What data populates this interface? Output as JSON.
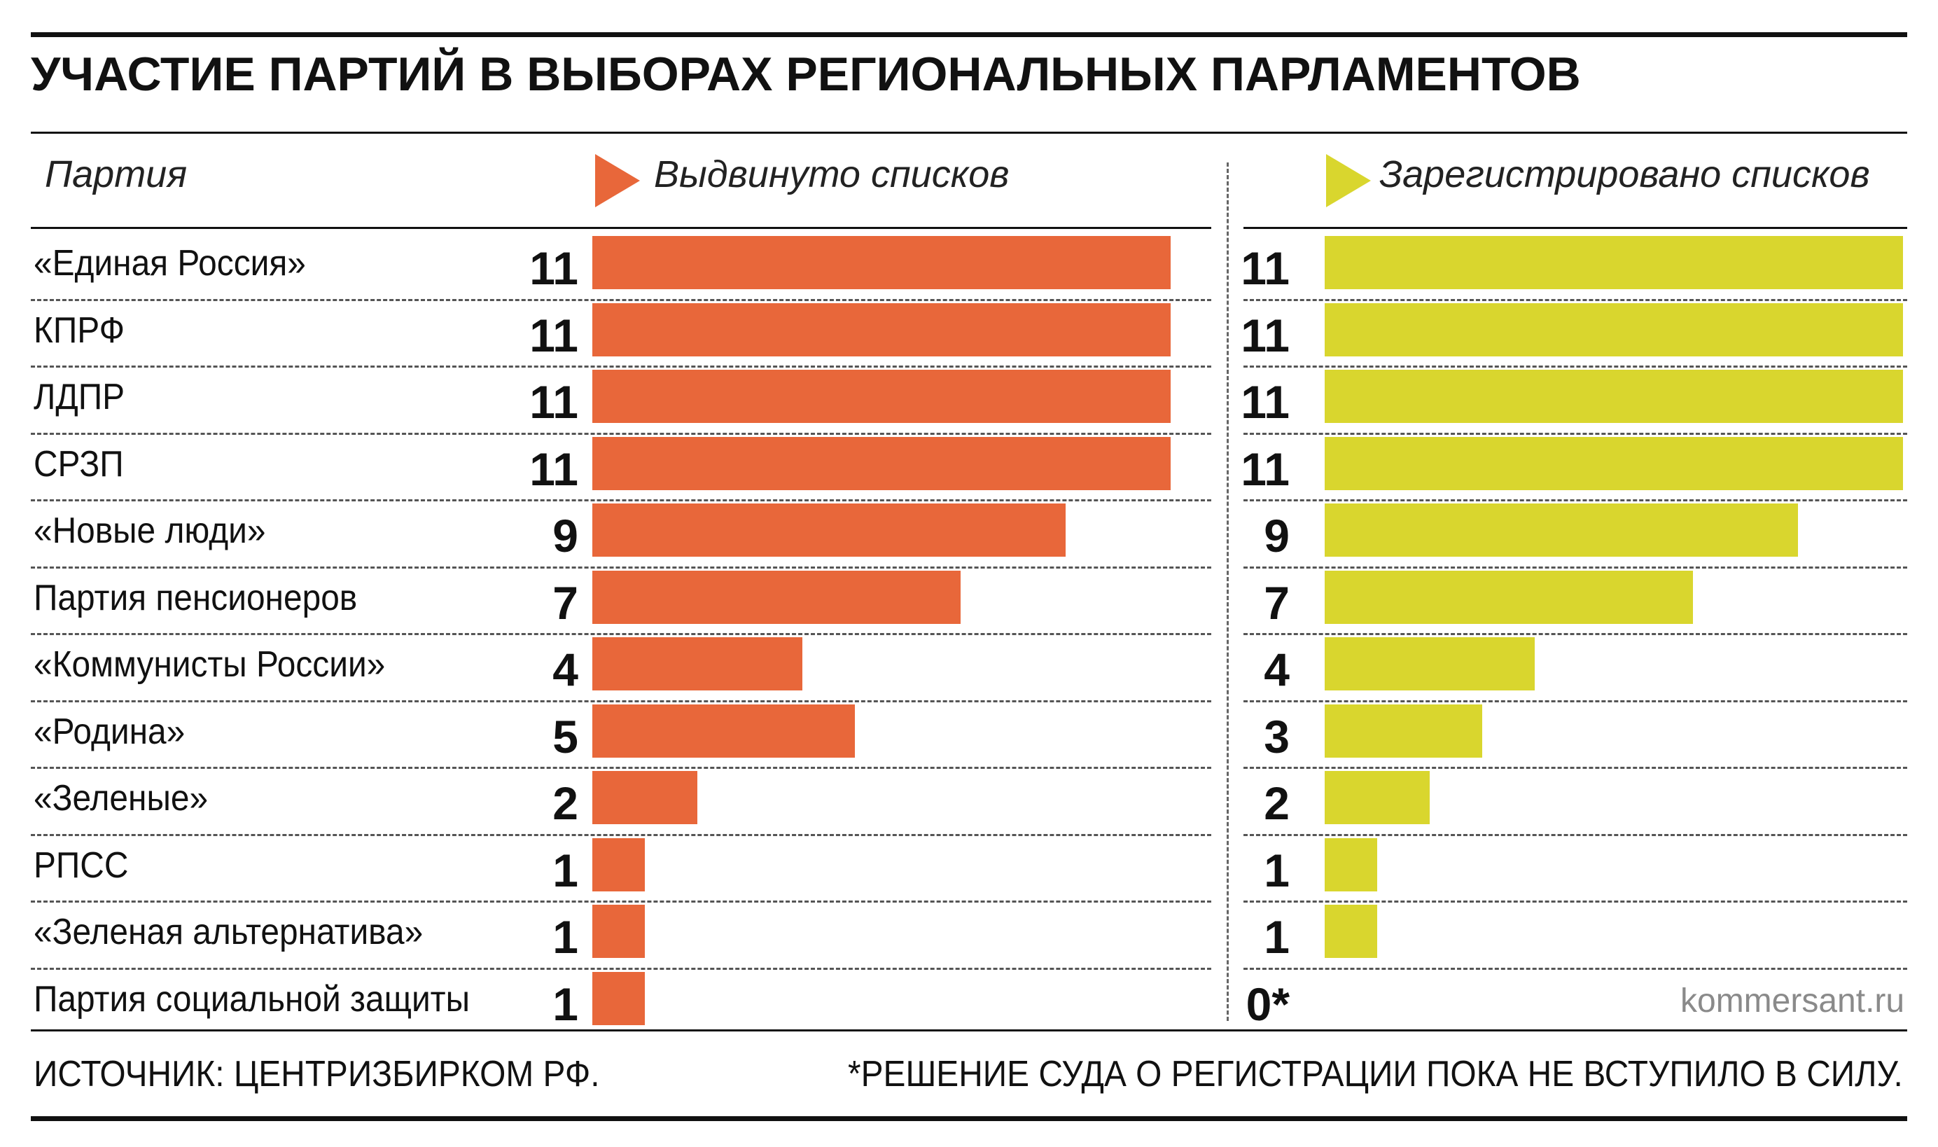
{
  "title": "УЧАСТИЕ ПАРТИЙ В ВЫБОРАХ РЕГИОНАЛЬНЫХ ПАРЛАМЕНТОВ",
  "column_header": "Партия",
  "footer": {
    "source": "ИСТОЧНИК: ЦЕНТРИЗБИРКОМ РФ.",
    "note": "*РЕШЕНИЕ СУДА О РЕГИСТРАЦИИ ПОКА НЕ ВСТУПИЛО В СИЛУ."
  },
  "credit": "kommersant.ru",
  "colors": {
    "nominated": "#e8673a",
    "registered": "#d9d62e",
    "text": "#111111"
  },
  "chart_data": {
    "type": "bar",
    "orientation": "horizontal",
    "title": "УЧАСТИЕ ПАРТИЙ В ВЫБОРАХ РЕГИОНАЛЬНЫХ ПАРЛАМЕНТОВ",
    "categories": [
      "«Единая Россия»",
      "КПРФ",
      "ЛДПР",
      "СРЗП",
      "«Новые люди»",
      "Партия пенсионеров",
      "«Коммунисты России»",
      "«Родина»",
      "«Зеленые»",
      "РПСС",
      "«Зеленая альтернатива»",
      "Партия социальной защиты"
    ],
    "series": [
      {
        "name": "Выдвинуто списков",
        "values": [
          11,
          11,
          11,
          11,
          9,
          7,
          4,
          5,
          2,
          1,
          1,
          1
        ],
        "labels": [
          "11",
          "11",
          "11",
          "11",
          "9",
          "7",
          "4",
          "5",
          "2",
          "1",
          "1",
          "1"
        ],
        "color": "#e8673a"
      },
      {
        "name": "Зарегистрировано списков",
        "values": [
          11,
          11,
          11,
          11,
          9,
          7,
          4,
          3,
          2,
          1,
          1,
          0
        ],
        "labels": [
          "11",
          "11",
          "11",
          "11",
          "9",
          "7",
          "4",
          "3",
          "2",
          "1",
          "1",
          "0*"
        ],
        "color": "#d9d62e"
      }
    ],
    "xlim": [
      0,
      11
    ],
    "grid": false,
    "legend": "top"
  }
}
